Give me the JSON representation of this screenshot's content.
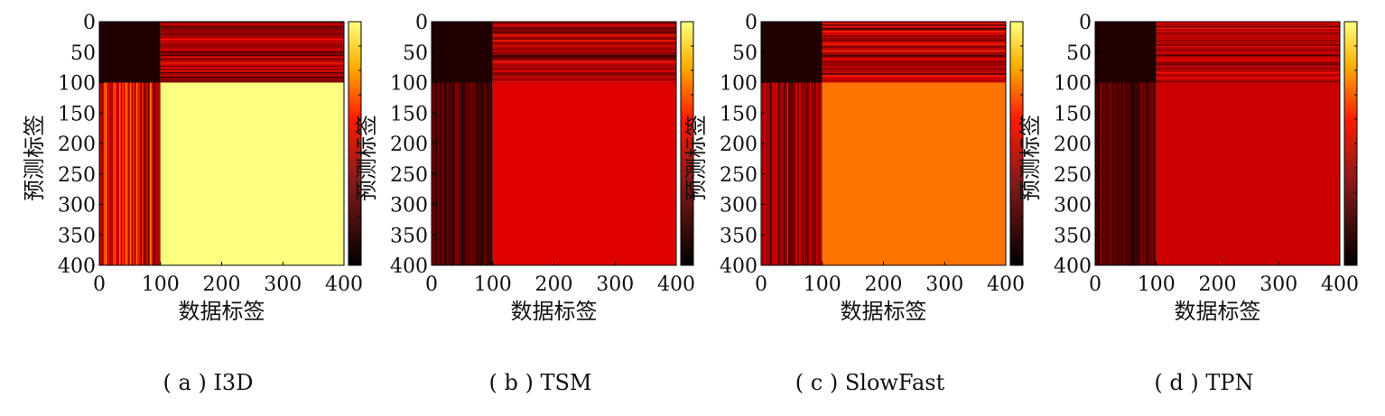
{
  "figure": {
    "xlabel": "数据标签",
    "ylabel": "预测标签",
    "tick_labels": [
      "0",
      "50",
      "100",
      "150",
      "200",
      "250",
      "300",
      "350",
      "400"
    ],
    "x_tick_labels": [
      "0",
      "100",
      "200",
      "300",
      "400"
    ]
  },
  "chart_data": [
    {
      "type": "heatmap",
      "caption": "( a ) I3D",
      "xlabel": "数据标签",
      "ylabel": "预测标签",
      "xlim": [
        0,
        400
      ],
      "ylim": [
        0,
        400
      ],
      "colormap": "hot",
      "colorbar": true,
      "regions": [
        {
          "name": "top-left",
          "x": [
            0,
            100
          ],
          "y": [
            0,
            100
          ],
          "level": 0.05
        },
        {
          "name": "top-right",
          "x": [
            100,
            400
          ],
          "y": [
            0,
            100
          ],
          "level": 0.25,
          "striped": true
        },
        {
          "name": "bottom-left",
          "x": [
            0,
            100
          ],
          "y": [
            100,
            400
          ],
          "level": 0.35,
          "striped": true
        },
        {
          "name": "bottom-right",
          "x": [
            100,
            400
          ],
          "y": [
            100,
            400
          ],
          "level": 0.9
        }
      ]
    },
    {
      "type": "heatmap",
      "caption": "( b ) TSM",
      "xlabel": "数据标签",
      "ylabel": "预测标签",
      "xlim": [
        0,
        400
      ],
      "ylim": [
        0,
        400
      ],
      "colormap": "hot",
      "colorbar": true,
      "regions": [
        {
          "name": "top-left",
          "x": [
            0,
            100
          ],
          "y": [
            0,
            100
          ],
          "level": 0.05
        },
        {
          "name": "top-right",
          "x": [
            100,
            400
          ],
          "y": [
            0,
            100
          ],
          "level": 0.25,
          "striped": true
        },
        {
          "name": "bottom-left",
          "x": [
            0,
            100
          ],
          "y": [
            100,
            400
          ],
          "level": 0.12,
          "striped": true
        },
        {
          "name": "bottom-right",
          "x": [
            100,
            400
          ],
          "y": [
            100,
            400
          ],
          "level": 0.35
        }
      ]
    },
    {
      "type": "heatmap",
      "caption": "( c ) SlowFast",
      "xlabel": "数据标签",
      "ylabel": "预测标签",
      "xlim": [
        0,
        400
      ],
      "ylim": [
        0,
        400
      ],
      "colormap": "hot",
      "colorbar": true,
      "regions": [
        {
          "name": "top-left",
          "x": [
            0,
            100
          ],
          "y": [
            0,
            100
          ],
          "level": 0.05
        },
        {
          "name": "top-right",
          "x": [
            100,
            400
          ],
          "y": [
            0,
            100
          ],
          "level": 0.25,
          "striped": true
        },
        {
          "name": "bottom-left",
          "x": [
            0,
            100
          ],
          "y": [
            100,
            400
          ],
          "level": 0.22,
          "striped": true
        },
        {
          "name": "bottom-right",
          "x": [
            100,
            400
          ],
          "y": [
            100,
            400
          ],
          "level": 0.58
        }
      ]
    },
    {
      "type": "heatmap",
      "caption": "( d ) TPN",
      "xlabel": "数据标签",
      "ylabel": "预测标签",
      "xlim": [
        0,
        400
      ],
      "ylim": [
        0,
        400
      ],
      "colormap": "hot",
      "colorbar": true,
      "regions": [
        {
          "name": "top-left",
          "x": [
            0,
            100
          ],
          "y": [
            0,
            100
          ],
          "level": 0.05
        },
        {
          "name": "top-right",
          "x": [
            100,
            400
          ],
          "y": [
            0,
            100
          ],
          "level": 0.25,
          "striped": true
        },
        {
          "name": "bottom-left",
          "x": [
            0,
            100
          ],
          "y": [
            100,
            400
          ],
          "level": 0.12,
          "striped": true
        },
        {
          "name": "bottom-right",
          "x": [
            100,
            400
          ],
          "y": [
            100,
            400
          ],
          "level": 0.32
        }
      ]
    }
  ]
}
